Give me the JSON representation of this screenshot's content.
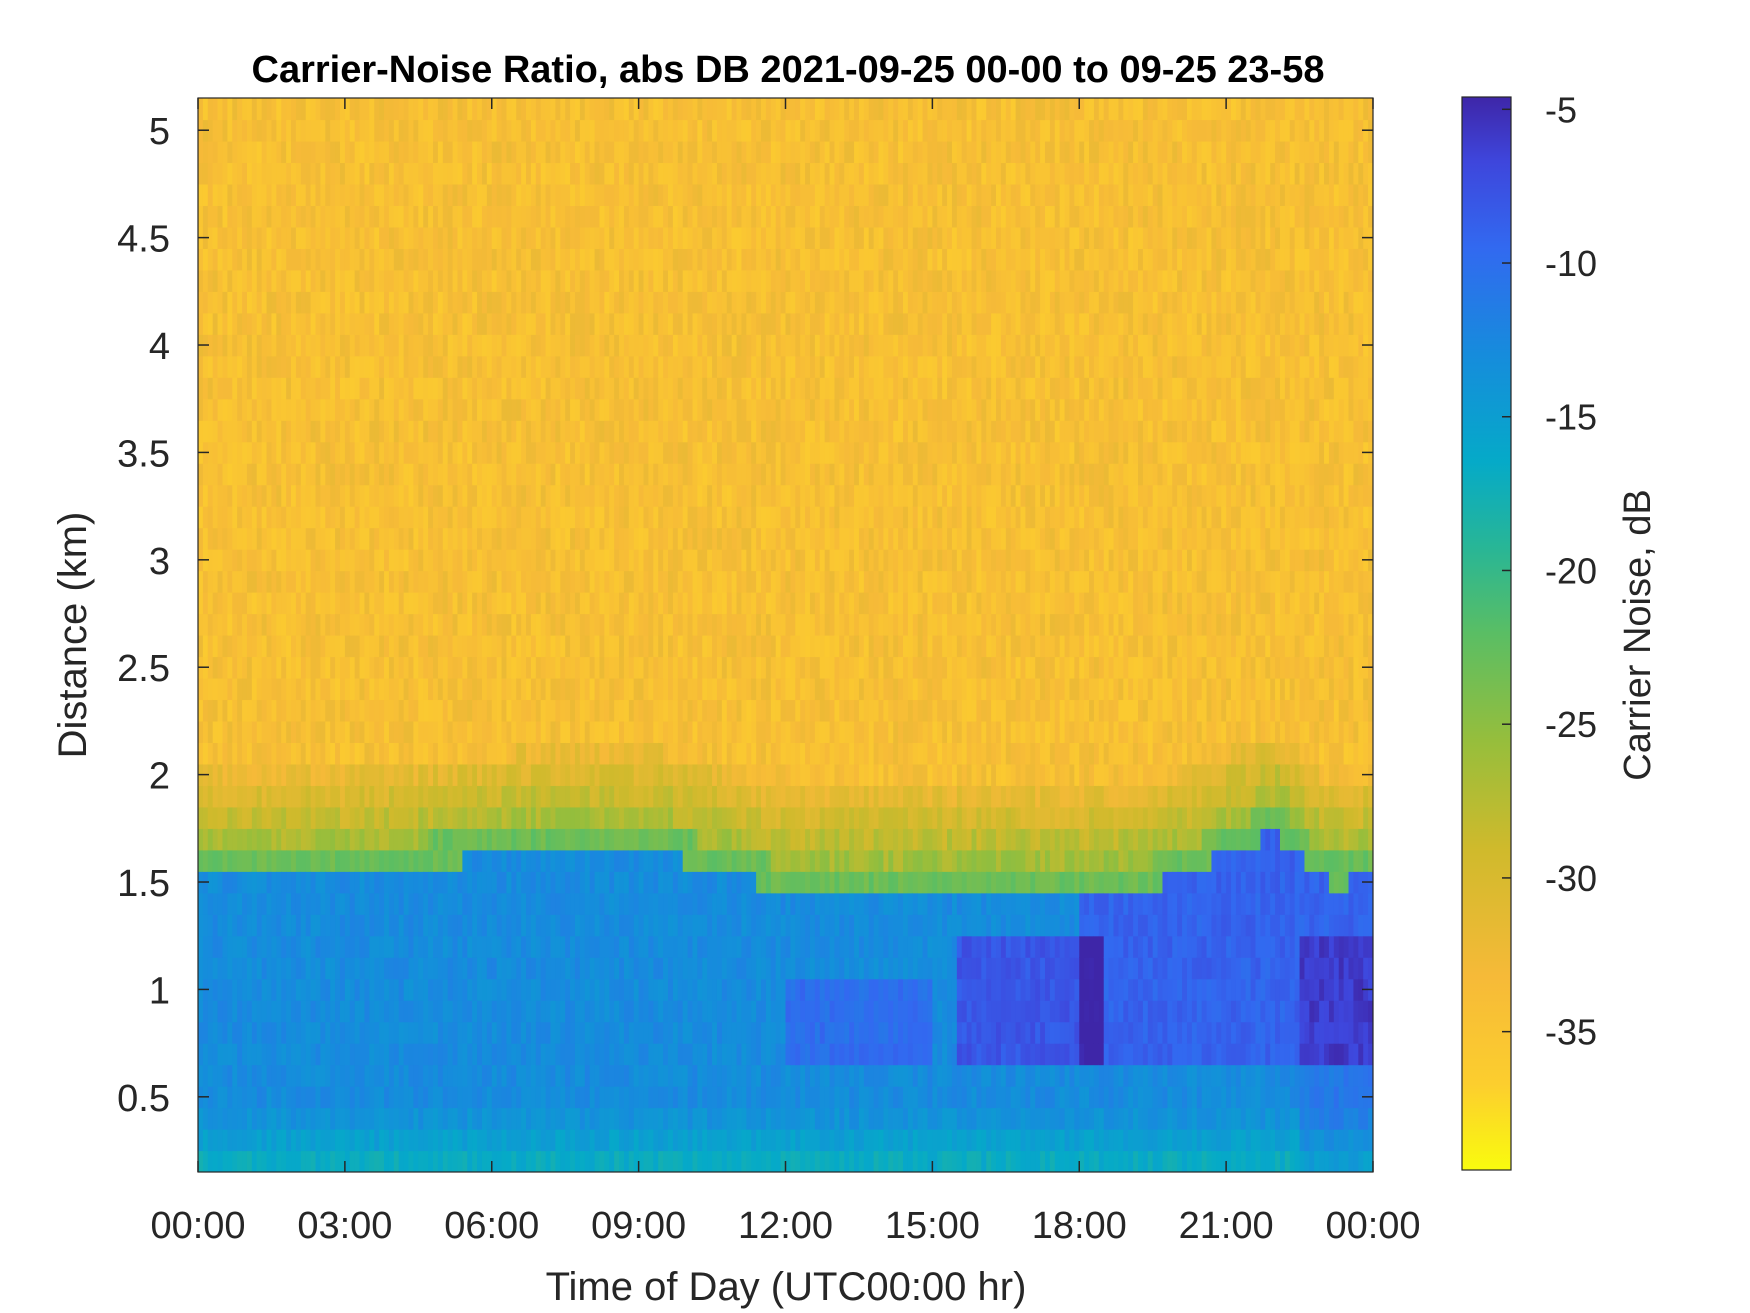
{
  "chart_data": {
    "type": "heatmap",
    "title": "Carrier-Noise Ratio, abs DB 2021-09-25 00-00 to 09-25 23-58",
    "xlabel": "Time of Day (UTC00:00 hr)",
    "ylabel": "Distance (km)",
    "colorbar_label": "Carrier Noise, dB",
    "x_range_hours": [
      0,
      24
    ],
    "y_range_km": [
      0.15,
      5.15
    ],
    "color_range_db": [
      -39.5,
      -4.6
    ],
    "x_ticks": [
      {
        "hour": 0,
        "label": "00:00"
      },
      {
        "hour": 3,
        "label": "03:00"
      },
      {
        "hour": 6,
        "label": "06:00"
      },
      {
        "hour": 9,
        "label": "09:00"
      },
      {
        "hour": 12,
        "label": "12:00"
      },
      {
        "hour": 15,
        "label": "15:00"
      },
      {
        "hour": 18,
        "label": "18:00"
      },
      {
        "hour": 21,
        "label": "21:00"
      },
      {
        "hour": 24,
        "label": "00:00"
      }
    ],
    "y_ticks": [
      {
        "value": 0.5,
        "label": "0.5"
      },
      {
        "value": 1,
        "label": "1"
      },
      {
        "value": 1.5,
        "label": "1.5"
      },
      {
        "value": 2,
        "label": "2"
      },
      {
        "value": 2.5,
        "label": "2.5"
      },
      {
        "value": 3,
        "label": "3"
      },
      {
        "value": 3.5,
        "label": "3.5"
      },
      {
        "value": 4,
        "label": "4"
      },
      {
        "value": 4.5,
        "label": "4.5"
      },
      {
        "value": 5,
        "label": "5"
      }
    ],
    "colorbar_ticks": [
      {
        "value": -5,
        "label": "-5"
      },
      {
        "value": -10,
        "label": "-10"
      },
      {
        "value": -15,
        "label": "-15"
      },
      {
        "value": -20,
        "label": "-20"
      },
      {
        "value": -25,
        "label": "-25"
      },
      {
        "value": -30,
        "label": "-30"
      },
      {
        "value": -35,
        "label": "-35"
      }
    ],
    "colormap": "parula",
    "background_level_db": -34,
    "boundary_layer_top_km": [
      {
        "hour": 0,
        "km": 1.65
      },
      {
        "hour": 3,
        "km": 1.65
      },
      {
        "hour": 6.5,
        "km": 1.75
      },
      {
        "hour": 9.5,
        "km": 1.75
      },
      {
        "hour": 12,
        "km": 1.58
      },
      {
        "hour": 17.5,
        "km": 1.58
      },
      {
        "hour": 19.5,
        "km": 1.6
      },
      {
        "hour": 21,
        "km": 1.75
      },
      {
        "hour": 22,
        "km": 1.85
      },
      {
        "hour": 22.5,
        "km": 1.75
      },
      {
        "hour": 23.2,
        "km": 1.6
      },
      {
        "hour": 24,
        "km": 1.65
      }
    ]
  }
}
